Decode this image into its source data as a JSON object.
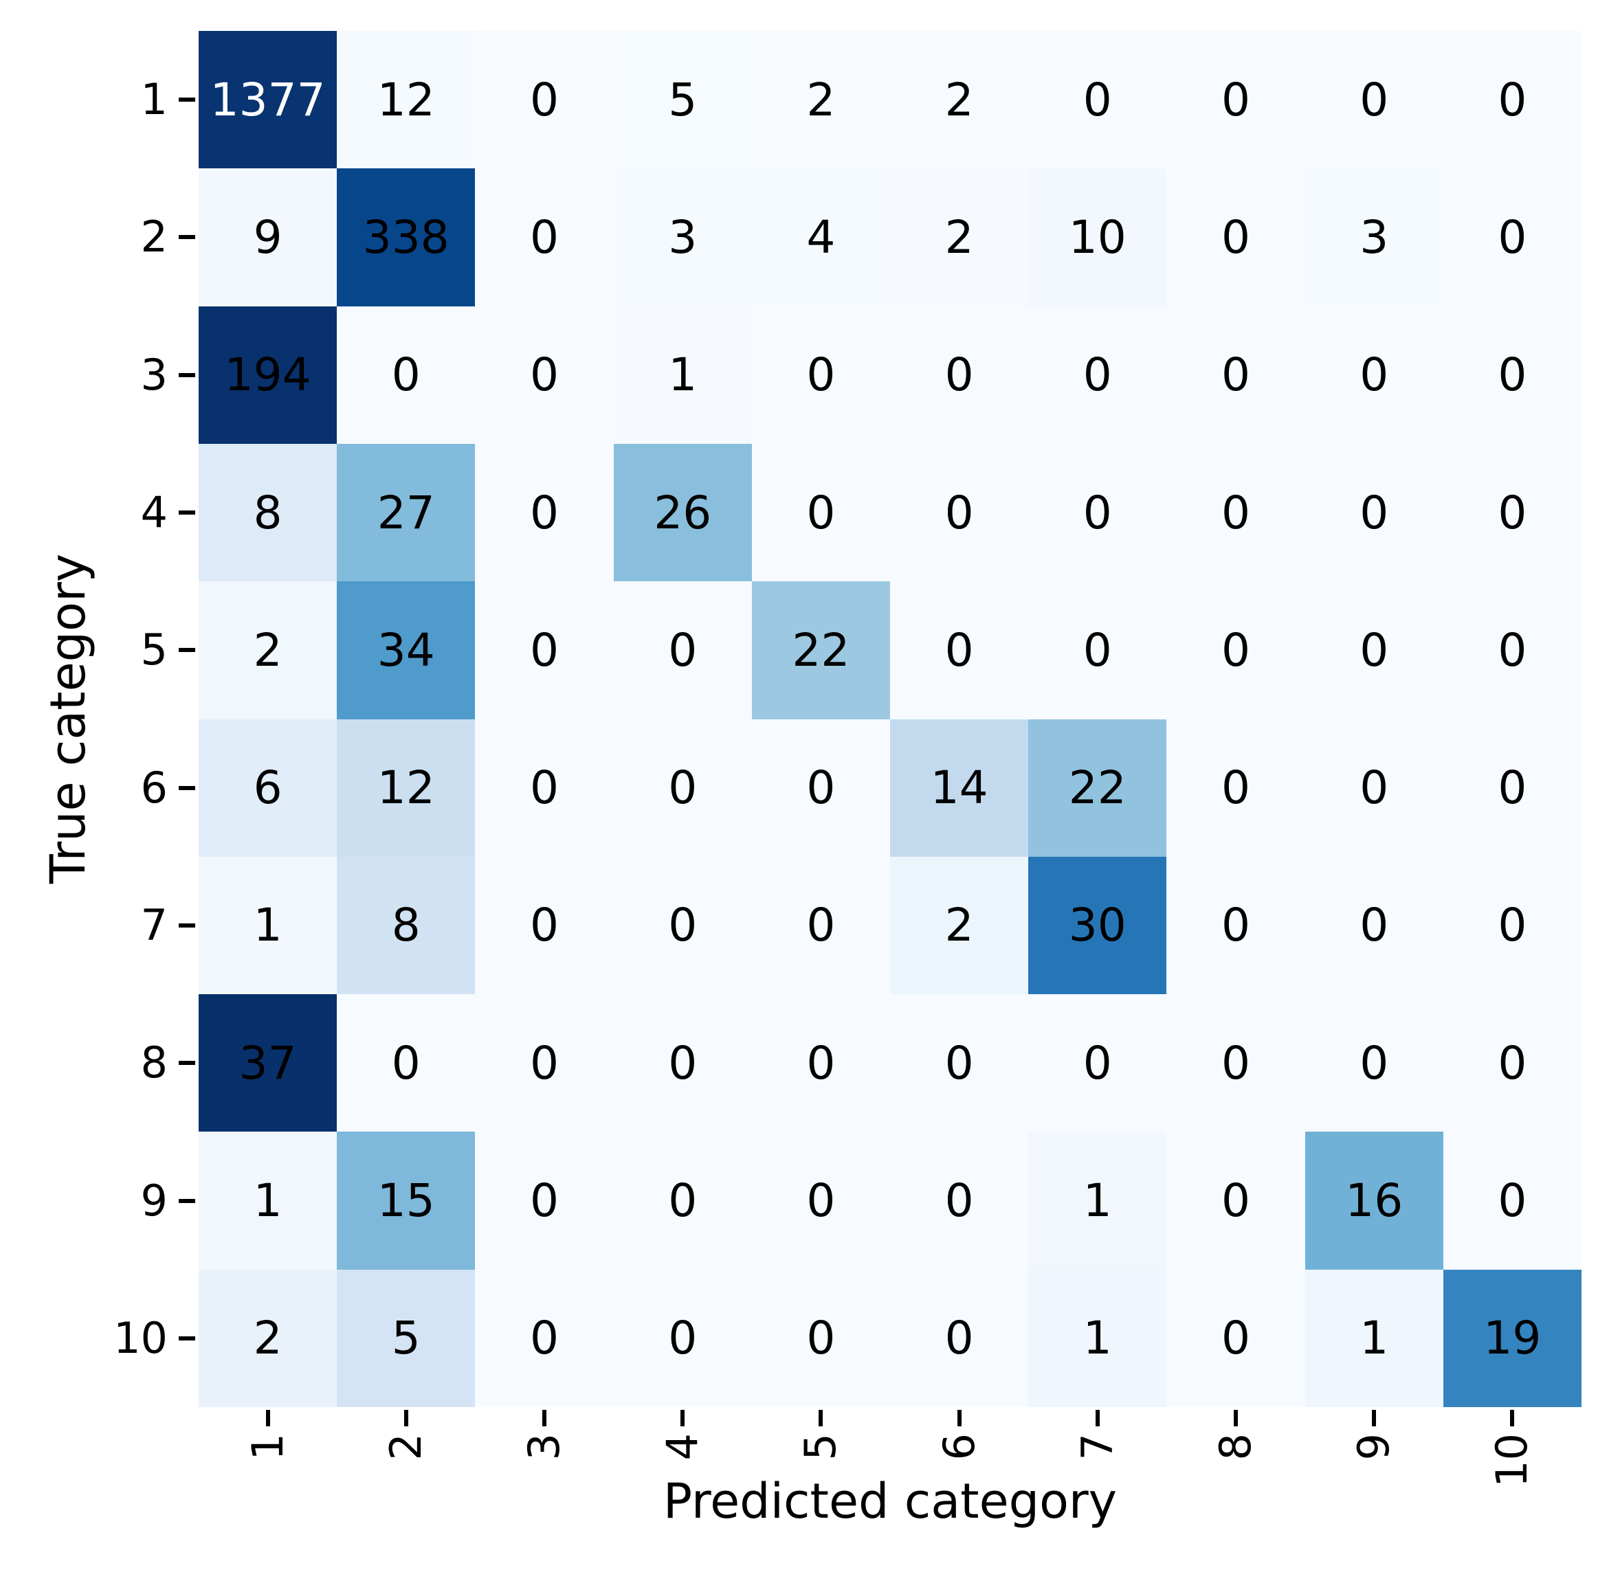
{
  "chart_data": {
    "type": "heatmap",
    "subtype": "confusion-matrix",
    "title": "",
    "xlabel": "Predicted category",
    "ylabel": "True category",
    "x_tick_labels": [
      "1",
      "2",
      "3",
      "4",
      "5",
      "6",
      "7",
      "8",
      "9",
      "10"
    ],
    "y_tick_labels": [
      "1",
      "2",
      "3",
      "4",
      "5",
      "6",
      "7",
      "8",
      "9",
      "10"
    ],
    "matrix": [
      [
        1377,
        12,
        0,
        5,
        2,
        2,
        0,
        0,
        0,
        0
      ],
      [
        9,
        338,
        0,
        3,
        4,
        2,
        10,
        0,
        3,
        0
      ],
      [
        194,
        0,
        0,
        1,
        0,
        0,
        0,
        0,
        0,
        0
      ],
      [
        8,
        27,
        0,
        26,
        0,
        0,
        0,
        0,
        0,
        0
      ],
      [
        2,
        34,
        0,
        0,
        22,
        0,
        0,
        0,
        0,
        0
      ],
      [
        6,
        12,
        0,
        0,
        0,
        14,
        22,
        0,
        0,
        0
      ],
      [
        1,
        8,
        0,
        0,
        0,
        2,
        30,
        0,
        0,
        0
      ],
      [
        37,
        0,
        0,
        0,
        0,
        0,
        0,
        0,
        0,
        0
      ],
      [
        1,
        15,
        0,
        0,
        0,
        0,
        1,
        0,
        16,
        0
      ],
      [
        2,
        5,
        0,
        0,
        0,
        0,
        1,
        0,
        1,
        19
      ]
    ],
    "color": {
      "colormap": "Blues",
      "colormap_stops": [
        "#f7fbff",
        "#deebf7",
        "#c6dbef",
        "#9ecae1",
        "#6baed6",
        "#4292c6",
        "#2171b5",
        "#08519c",
        "#08306b"
      ],
      "normalization": "row_fraction",
      "annotation_color_dark": "#000000",
      "annotation_color_light": "#ffffff",
      "background": "#ffffff",
      "tick_color": "#000000"
    },
    "legend": {
      "visible": false
    },
    "grid": {
      "visible": false
    }
  }
}
